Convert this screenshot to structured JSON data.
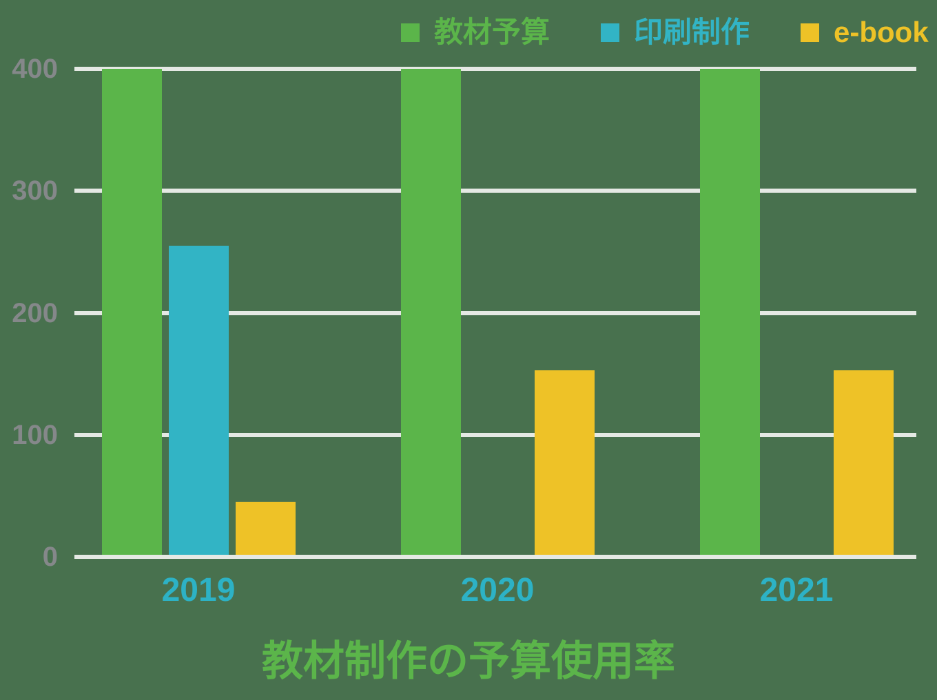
{
  "chart_data": {
    "type": "bar",
    "categories": [
      "2019",
      "2020",
      "2021"
    ],
    "series": [
      {
        "name": "教材予算",
        "color": "#5BB54A",
        "values": [
          400,
          400,
          400
        ]
      },
      {
        "name": "印刷制作",
        "color": "#32B4C5",
        "values": [
          255,
          0,
          0
        ]
      },
      {
        "name": "e-book",
        "color": "#EEC227",
        "values": [
          45,
          153,
          153
        ]
      }
    ],
    "title": "教材制作の予算使用率",
    "xlabel": "",
    "ylabel": "",
    "ylim": [
      0,
      400
    ],
    "yticks": [
      0,
      100,
      200,
      300,
      400
    ],
    "grid": "horizontal",
    "legend_position": "top"
  },
  "colors": {
    "background": "#48714E",
    "gridline": "#E5E9E4",
    "tick_label": "#85888A",
    "category_label": "#2DB2C5",
    "title": "#5BB54A"
  }
}
